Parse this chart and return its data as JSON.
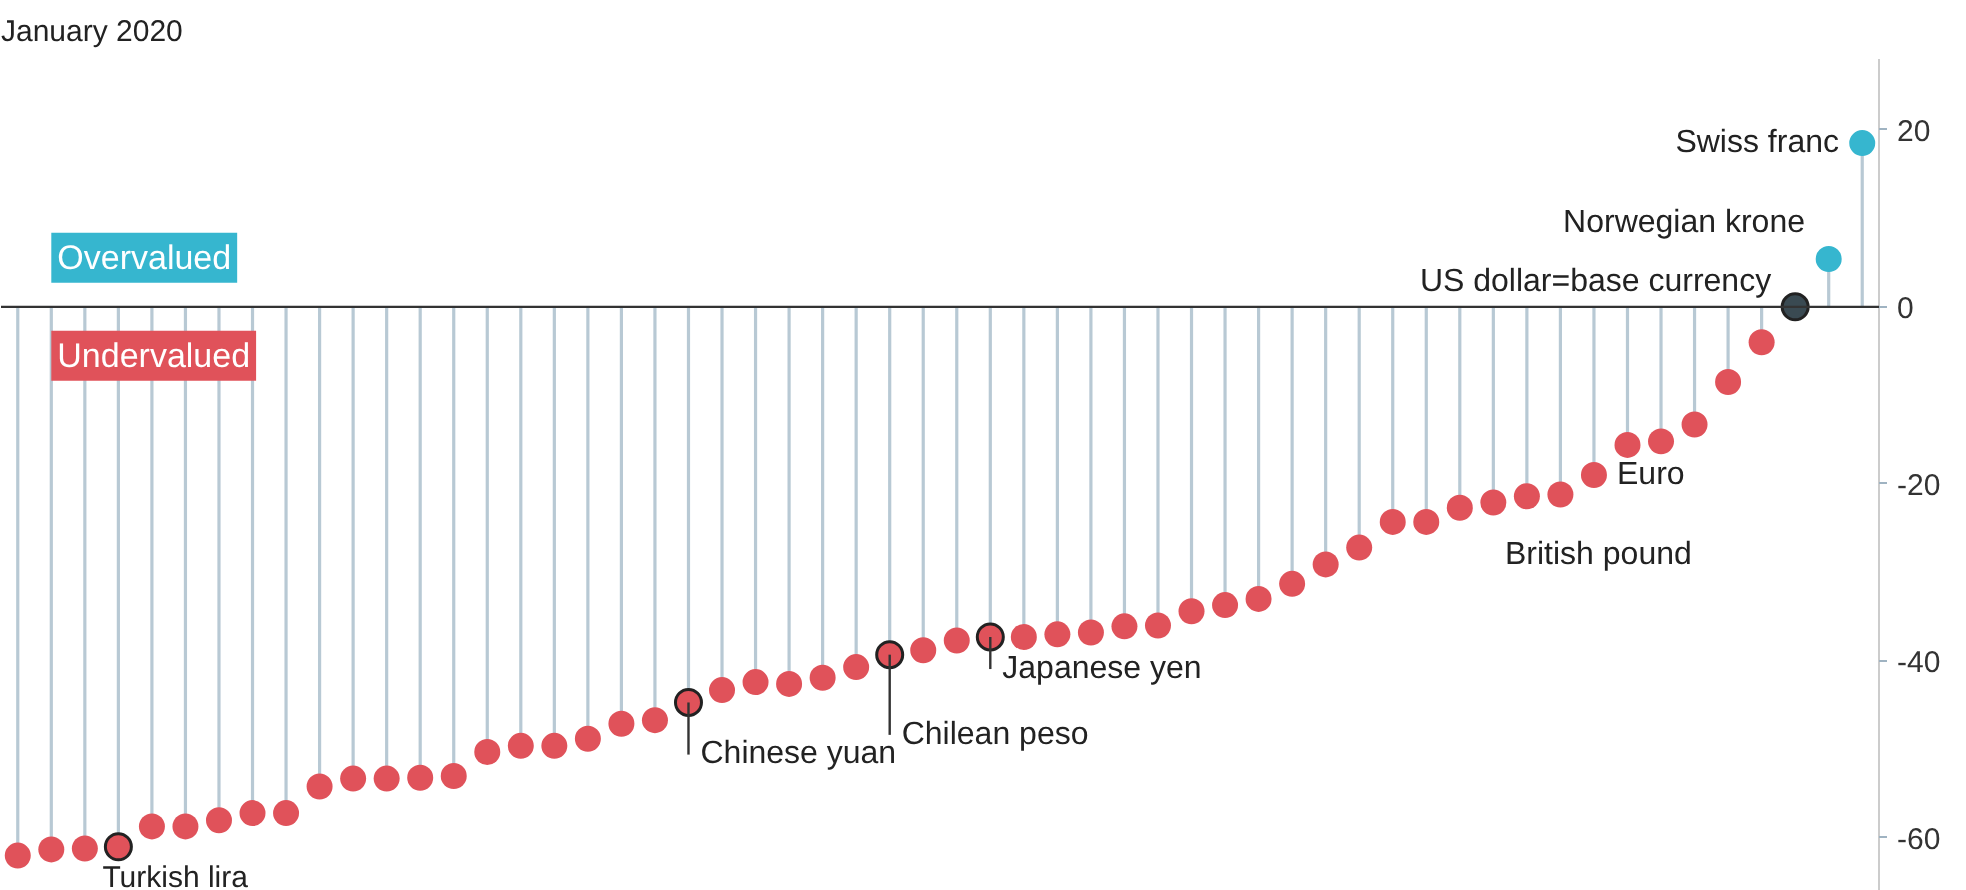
{
  "chart_data": {
    "type": "lollipop",
    "title": "January 2020",
    "categories": [
      null,
      null,
      null,
      null,
      null,
      null,
      null,
      null,
      null,
      null,
      null,
      null,
      null,
      null,
      null,
      null,
      null,
      null,
      null,
      null,
      null,
      null,
      null,
      null,
      null,
      null,
      null,
      null,
      null,
      null,
      null,
      null,
      null,
      null,
      null,
      null,
      null,
      null,
      null,
      null,
      null,
      null,
      null,
      null,
      null,
      null,
      null,
      null,
      null,
      null,
      null,
      null,
      null,
      null,
      null,
      null
    ],
    "values": [
      -62,
      -61.3,
      -61.2,
      -61,
      -58.7,
      -58.7,
      -58,
      -57.2,
      -57.2,
      -54.2,
      -53.3,
      -53.3,
      -53.2,
      -53,
      -50.3,
      -49.6,
      -49.6,
      -48.8,
      -47.1,
      -46.7,
      -44.7,
      -43.3,
      -42.4,
      -42.6,
      -41.9,
      -40.7,
      -39.3,
      -38.8,
      -37.7,
      -37.3,
      -37.3,
      -37,
      -36.8,
      -36.1,
      -36,
      -34.4,
      -33.7,
      -33,
      -31.3,
      -29.1,
      -27.2,
      -24.3,
      -24.3,
      -22.7,
      -22.1,
      -21.4,
      -21.2,
      -19,
      -15.6,
      -15.2,
      -13.3,
      -8.5,
      -4,
      0,
      5.4,
      18.5
    ],
    "colors": [
      "#e0525a",
      "#e0525a",
      "#e0525a",
      "#e0525a",
      "#e0525a",
      "#e0525a",
      "#e0525a",
      "#e0525a",
      "#e0525a",
      "#e0525a",
      "#e0525a",
      "#e0525a",
      "#e0525a",
      "#e0525a",
      "#e0525a",
      "#e0525a",
      "#e0525a",
      "#e0525a",
      "#e0525a",
      "#e0525a",
      "#e0525a",
      "#e0525a",
      "#e0525a",
      "#e0525a",
      "#e0525a",
      "#e0525a",
      "#e0525a",
      "#e0525a",
      "#e0525a",
      "#e0525a",
      "#e0525a",
      "#e0525a",
      "#e0525a",
      "#e0525a",
      "#e0525a",
      "#e0525a",
      "#e0525a",
      "#e0525a",
      "#e0525a",
      "#e0525a",
      "#e0525a",
      "#e0525a",
      "#e0525a",
      "#e0525a",
      "#e0525a",
      "#e0525a",
      "#e0525a",
      "#e0525a",
      "#e0525a",
      "#e0525a",
      "#e0525a",
      "#e0525a",
      "#e0525a",
      "#3a4a52",
      "#36b6cf",
      "#36b6cf"
    ],
    "ylim": [
      -66,
      28
    ],
    "yticks": [
      -60,
      -40,
      -20,
      0,
      20
    ],
    "tick_labels": "y",
    "grid": false,
    "ref_lines": [
      {
        "axis": "y",
        "value": 0,
        "color": "#333333"
      }
    ],
    "annotations": [
      "Overvalued",
      "Undervalued",
      {
        "text": "Turkish lira",
        "y": -61
      },
      {
        "text": "Chinese yuan",
        "y": -44.7
      },
      {
        "text": "Chilean peso",
        "y": -39.3
      },
      {
        "text": "Japanese yen",
        "y": -37.3
      },
      {
        "text": "US dollar=base currency",
        "y": 0
      },
      "British pound",
      "Euro",
      "Norwegian krone",
      "Swiss franc"
    ]
  }
}
